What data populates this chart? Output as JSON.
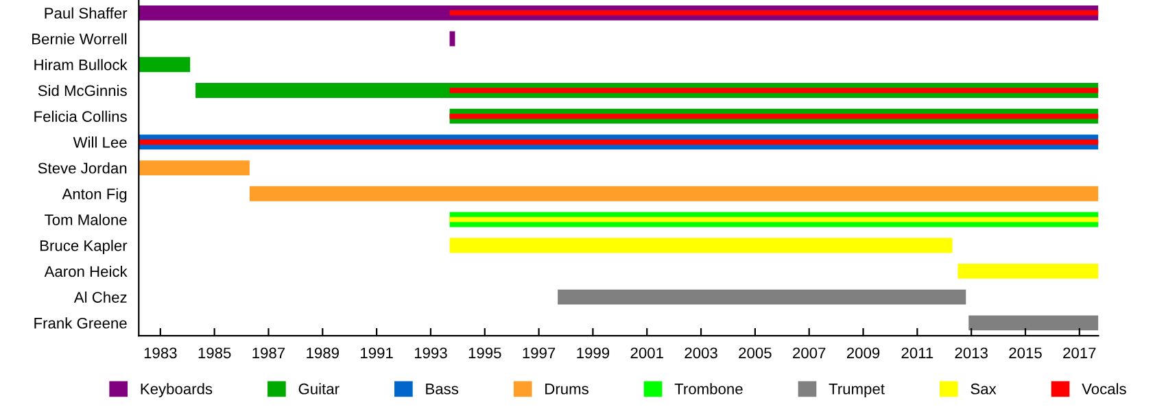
{
  "chart_data": {
    "type": "bar",
    "orientation": "horizontal",
    "categories": [
      "Paul Shaffer",
      "Bernie Worrell",
      "Hiram Bullock",
      "Sid McGinnis",
      "Felicia Collins",
      "Will Lee",
      "Steve Jordan",
      "Anton Fig",
      "Tom Malone",
      "Bruce Kapler",
      "Aaron Heick",
      "Al Chez",
      "Frank Greene"
    ],
    "series": [
      {
        "name": "Keyboards",
        "color": "#800080",
        "values": [
          35.5,
          0.2,
          null,
          null,
          null,
          null,
          null,
          null,
          null,
          null,
          null,
          null,
          null
        ],
        "base": [
          1982.2,
          1993.7,
          null,
          null,
          null,
          null,
          null,
          null,
          null,
          null,
          null,
          null,
          null
        ]
      },
      {
        "name": "Guitar",
        "color": "#00aa00",
        "values": [
          null,
          null,
          1.9,
          33.4,
          24.0,
          null,
          null,
          null,
          null,
          null,
          null,
          null,
          null
        ],
        "base": [
          null,
          null,
          1982.2,
          1984.3,
          1993.7,
          null,
          null,
          null,
          null,
          null,
          null,
          null,
          null
        ]
      },
      {
        "name": "Bass",
        "color": "#0066cc",
        "values": [
          null,
          null,
          null,
          null,
          null,
          35.5,
          null,
          null,
          null,
          null,
          null,
          null,
          null
        ],
        "base": [
          null,
          null,
          null,
          null,
          null,
          1982.2,
          null,
          null,
          null,
          null,
          null,
          null,
          null
        ]
      },
      {
        "name": "Drums",
        "color": "#ff9f2a",
        "values": [
          null,
          null,
          null,
          null,
          null,
          null,
          4.1,
          31.4,
          null,
          null,
          null,
          null,
          null
        ],
        "base": [
          null,
          null,
          null,
          null,
          null,
          null,
          1982.2,
          1986.3,
          null,
          null,
          null,
          null,
          null
        ]
      },
      {
        "name": "Trombone",
        "color": "#00ff00",
        "values": [
          null,
          null,
          null,
          null,
          null,
          null,
          null,
          null,
          24.0,
          null,
          null,
          null,
          null
        ],
        "base": [
          null,
          null,
          null,
          null,
          null,
          null,
          null,
          null,
          1993.7,
          null,
          null,
          null,
          null
        ]
      },
      {
        "name": "Trumpet",
        "color": "#808080",
        "values": [
          null,
          null,
          null,
          null,
          null,
          null,
          null,
          null,
          null,
          null,
          null,
          15.1,
          4.8
        ],
        "base": [
          null,
          null,
          null,
          null,
          null,
          null,
          null,
          null,
          null,
          null,
          null,
          1997.7,
          2012.9
        ]
      },
      {
        "name": "Sax",
        "color": "#ffff00",
        "values": [
          null,
          null,
          null,
          null,
          null,
          null,
          null,
          null,
          24.0,
          18.6,
          5.2,
          null,
          null
        ],
        "base": [
          null,
          null,
          null,
          null,
          null,
          null,
          null,
          null,
          1993.7,
          1993.7,
          2012.5,
          null,
          null
        ]
      },
      {
        "name": "Vocals",
        "color": "#ff0000",
        "values": [
          24.0,
          null,
          null,
          24.0,
          24.0,
          35.5,
          null,
          null,
          null,
          null,
          null,
          null,
          null
        ],
        "base": [
          1993.7,
          null,
          null,
          1993.7,
          1993.7,
          1982.2,
          null,
          null,
          null,
          null,
          null,
          null,
          null
        ]
      }
    ],
    "xlim": [
      1982.2,
      2017.7
    ],
    "xticks": [
      1983,
      1985,
      1987,
      1989,
      1991,
      1993,
      1995,
      1997,
      1999,
      2001,
      2003,
      2005,
      2007,
      2009,
      2011,
      2013,
      2015,
      2017
    ],
    "legend": "bottom"
  }
}
